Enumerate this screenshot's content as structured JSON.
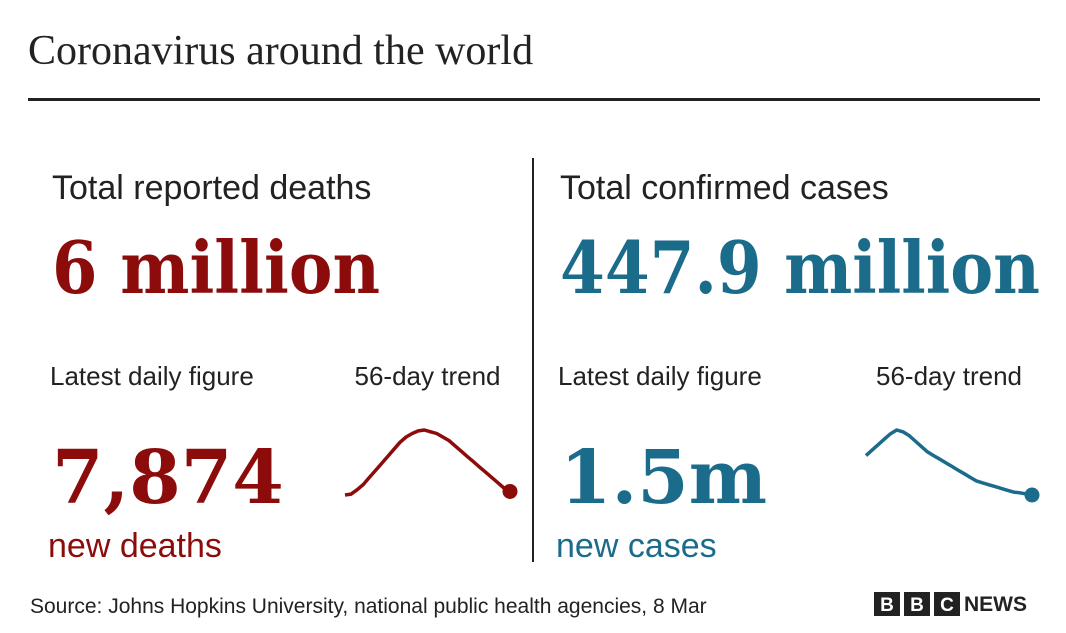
{
  "title": "Coronavirus around the world",
  "panels": [
    {
      "heading": "Total reported deaths",
      "total": "6 million",
      "daily_label": "Latest daily figure",
      "trend_label": "56-day trend",
      "daily_value": "7,874",
      "daily_unit": "new deaths",
      "color": "#8c0b0b",
      "trend": [
        7300,
        7350,
        7600,
        7900,
        8300,
        8700,
        9100,
        9500,
        9900,
        10300,
        10600,
        10800,
        10950,
        11000,
        10900,
        10800,
        10600,
        10400,
        10100,
        9800,
        9500,
        9200,
        8900,
        8600,
        8300,
        8000,
        7700,
        7500
      ]
    },
    {
      "heading": "Total confirmed cases",
      "total": "447.9 million",
      "daily_label": "Latest daily figure",
      "trend_label": "56-day trend",
      "daily_value": "1.5m",
      "daily_unit": "new cases",
      "color": "#1b6b8b",
      "trend": [
        2.6,
        2.75,
        2.9,
        3.05,
        3.2,
        3.3,
        3.25,
        3.15,
        3.0,
        2.85,
        2.7,
        2.6,
        2.5,
        2.4,
        2.3,
        2.2,
        2.1,
        2.0,
        1.9,
        1.85,
        1.8,
        1.75,
        1.7,
        1.65,
        1.6,
        1.58,
        1.55,
        1.52
      ]
    }
  ],
  "source": "Source: Johns Hopkins University, national public health agencies, 8 Mar",
  "logo": {
    "blocks": [
      "B",
      "B",
      "C"
    ],
    "text": "NEWS"
  }
}
